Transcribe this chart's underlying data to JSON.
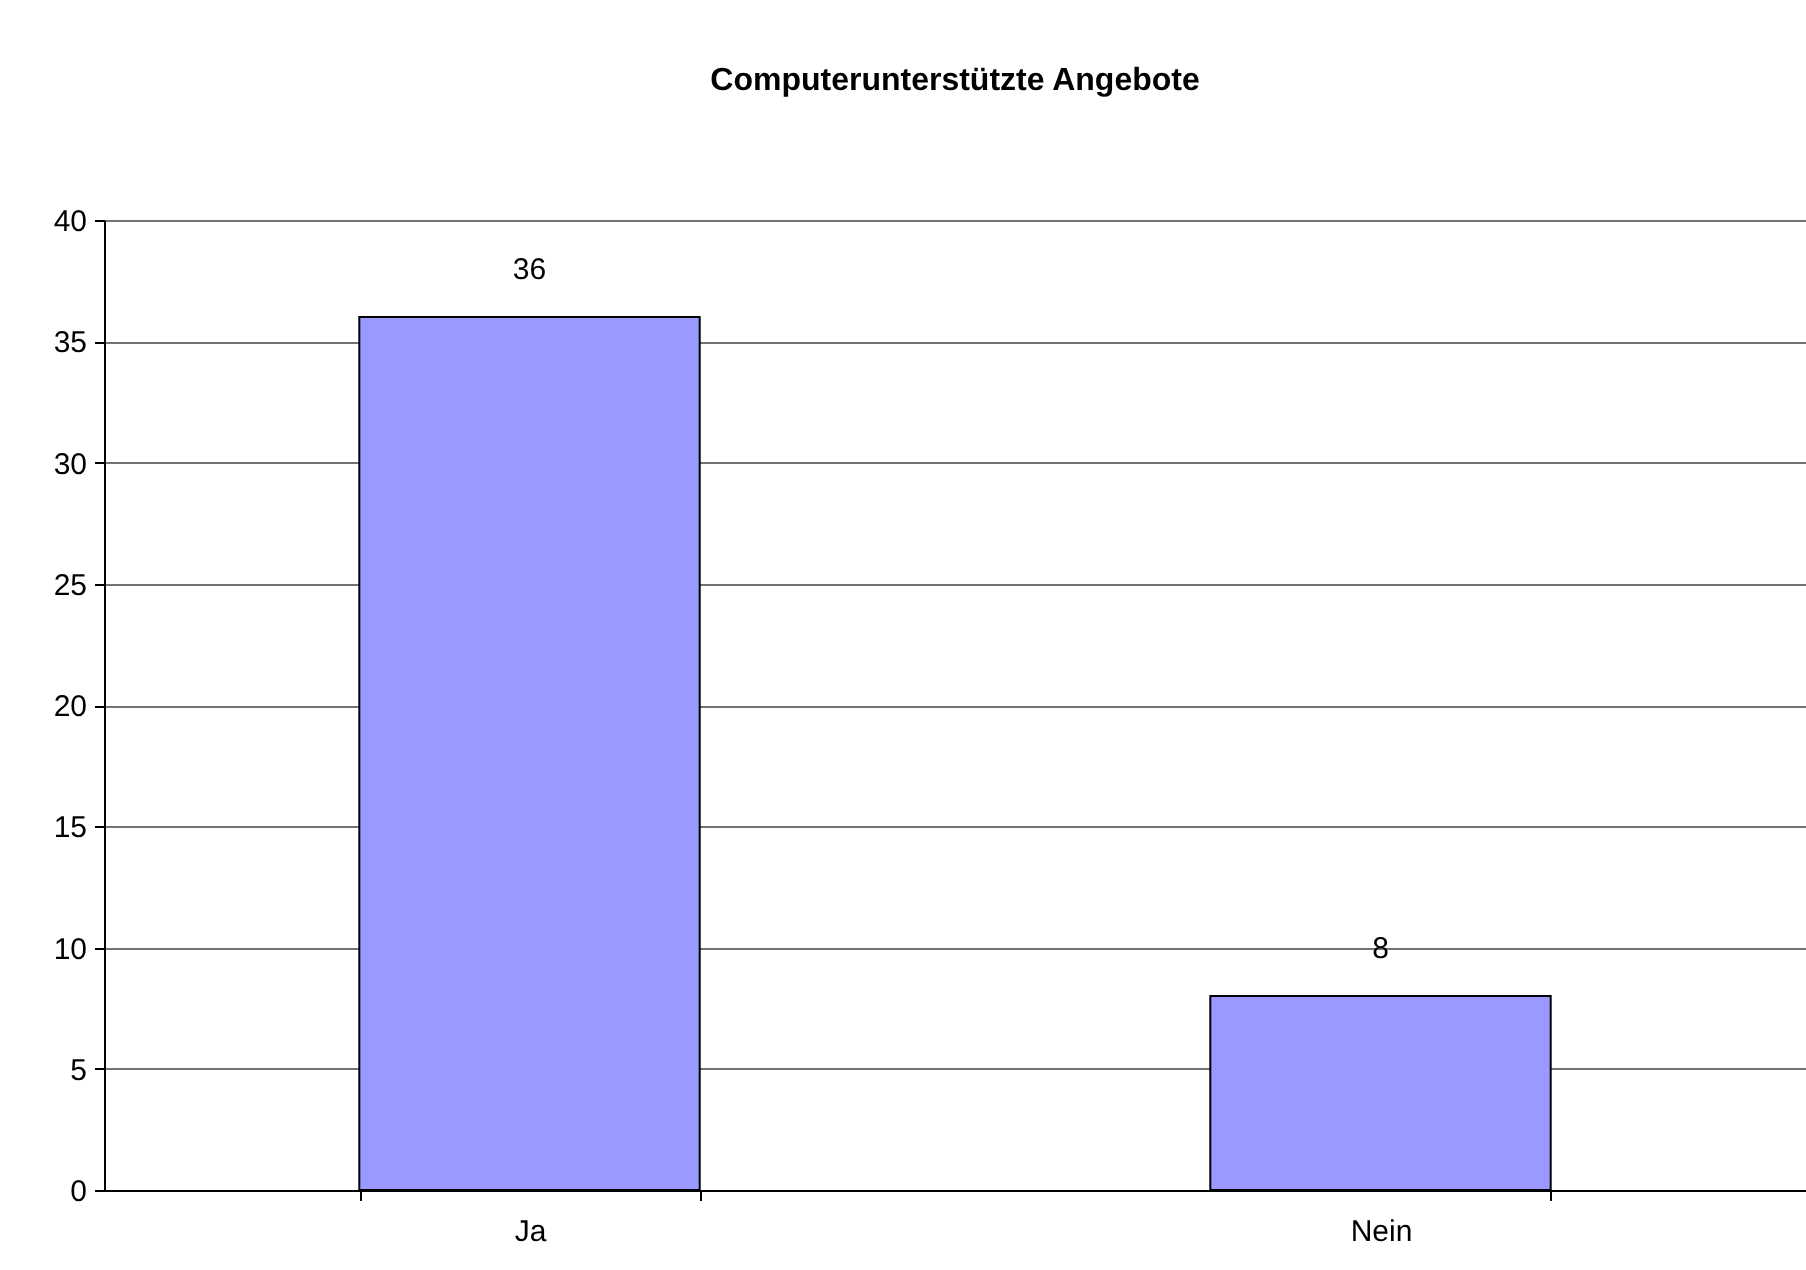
{
  "chart_data": {
    "type": "bar",
    "title": "Computerunterstützte Angebote",
    "categories": [
      "Ja",
      "Nein"
    ],
    "values": [
      36,
      8
    ],
    "color": "#9999ff",
    "ylim": [
      0,
      40
    ],
    "yticks": [
      0,
      5,
      10,
      15,
      20,
      25,
      30,
      35,
      40
    ],
    "grid": "y",
    "data_labels": true
  }
}
